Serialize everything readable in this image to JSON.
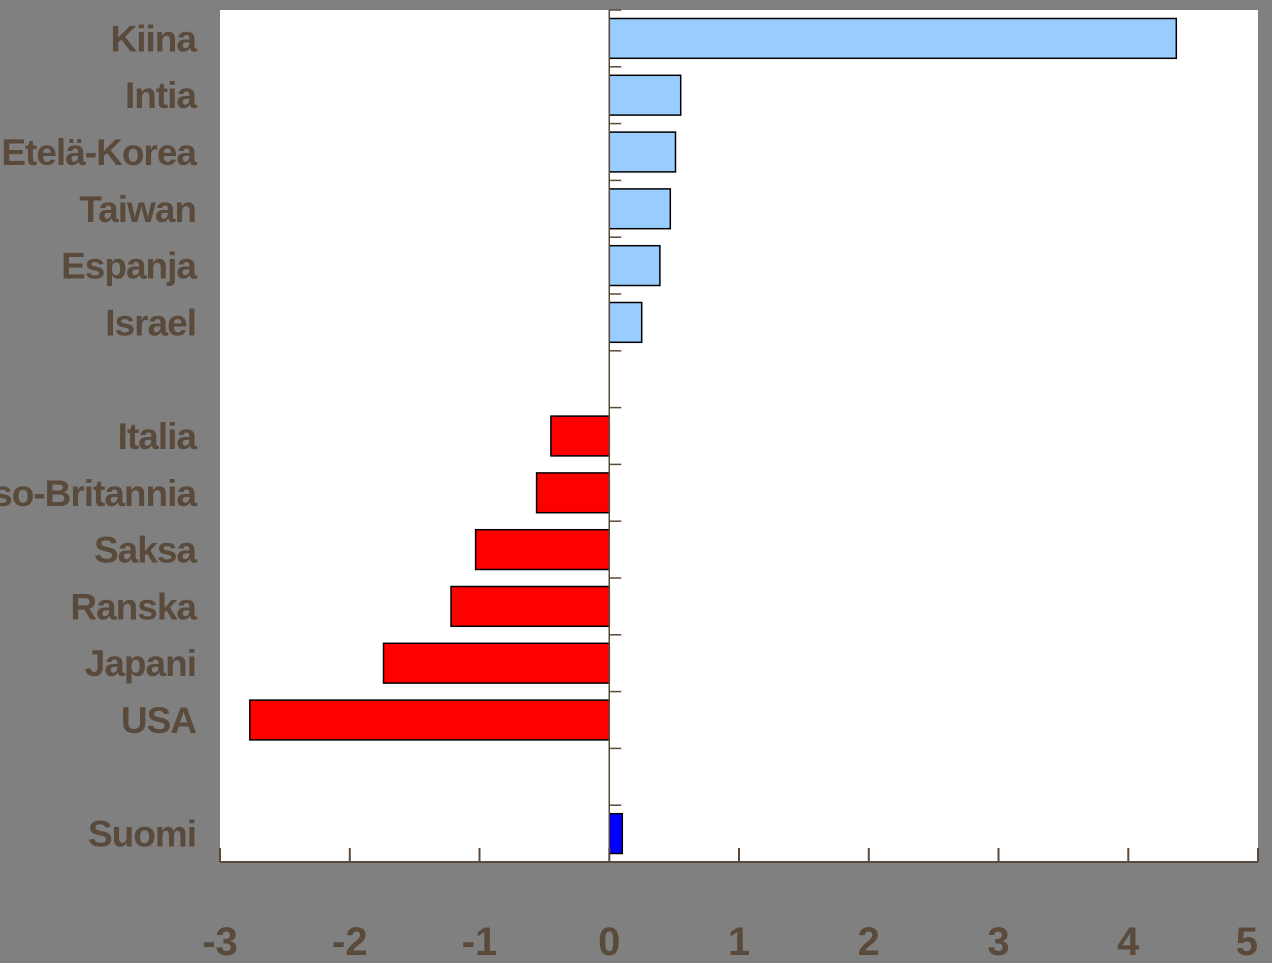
{
  "chart_data": {
    "type": "bar",
    "orientation": "horizontal",
    "title": "",
    "xlabel": "",
    "ylabel": "",
    "xlim": [
      -3,
      5
    ],
    "xticks": [
      "-3",
      "-2",
      "-1",
      "0",
      "1",
      "2",
      "3",
      "4",
      "5"
    ],
    "grid": false,
    "legend": "none",
    "categories": [
      "Kiina",
      "Intia",
      "Etelä-Korea",
      "Taiwan",
      "Espanja",
      "Israel",
      "",
      "Italia",
      "Iso-Britannia",
      "Saksa",
      "Ranska",
      "Japani",
      "USA",
      "",
      "Suomi"
    ],
    "values": [
      4.37,
      0.55,
      0.51,
      0.47,
      0.39,
      0.25,
      null,
      -0.45,
      -0.56,
      -1.03,
      -1.22,
      -1.74,
      -2.77,
      null,
      0.1
    ],
    "bar_colors": [
      "#99ccff",
      "#99ccff",
      "#99ccff",
      "#99ccff",
      "#99ccff",
      "#99ccff",
      null,
      "#ff0000",
      "#ff0000",
      "#ff0000",
      "#ff0000",
      "#ff0000",
      "#ff0000",
      null,
      "#0000ff"
    ],
    "colors": {
      "background": "#808080",
      "plot_area": "#ffffff",
      "text": "#5a4a3c",
      "axis": "#5a4a3c"
    }
  }
}
